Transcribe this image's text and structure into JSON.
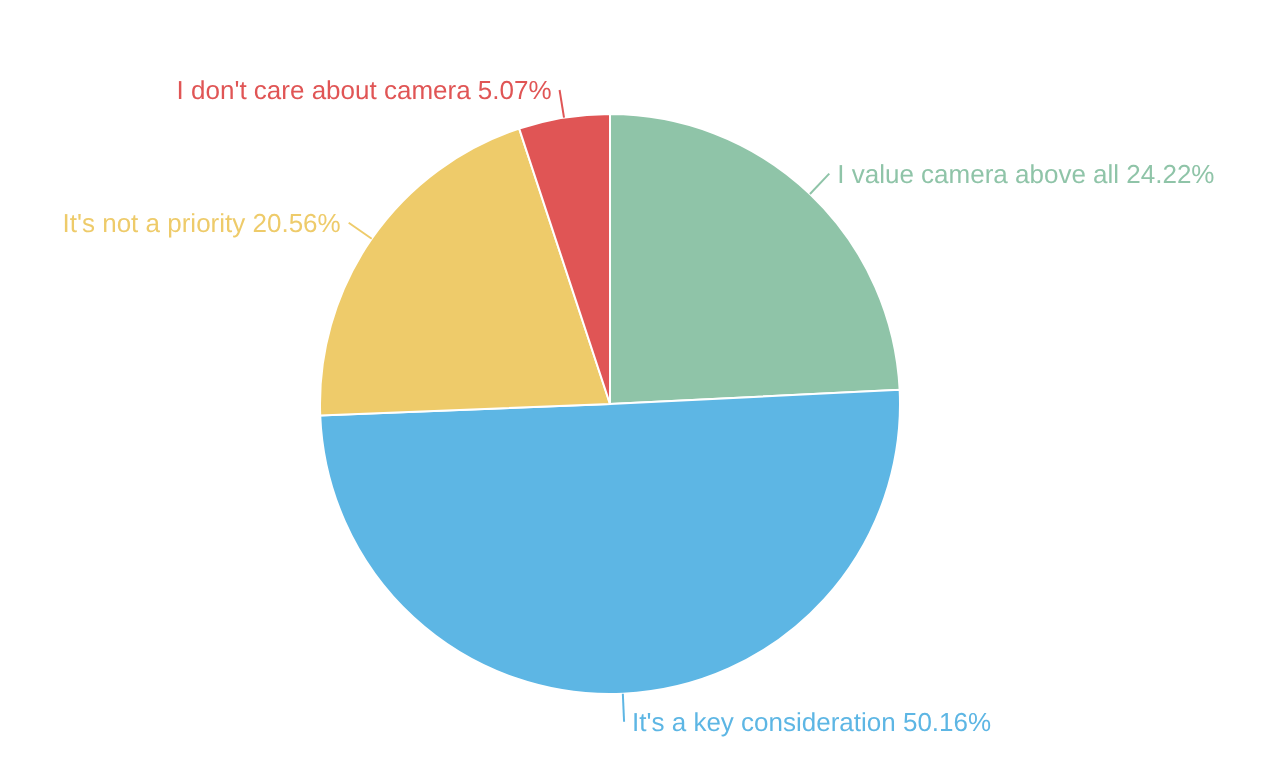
{
  "chart_data": {
    "type": "pie",
    "categories": [
      "I value camera above all",
      "It's a key consideration",
      "It's not a priority",
      "I don't care about camera"
    ],
    "values": [
      24.22,
      50.16,
      20.56,
      5.07
    ],
    "value_labels": [
      "24.22%",
      "50.16%",
      "20.56%",
      "5.07%"
    ],
    "colors": [
      "#8fc4a8",
      "#5db6e4",
      "#eecb6a",
      "#e05555"
    ]
  }
}
